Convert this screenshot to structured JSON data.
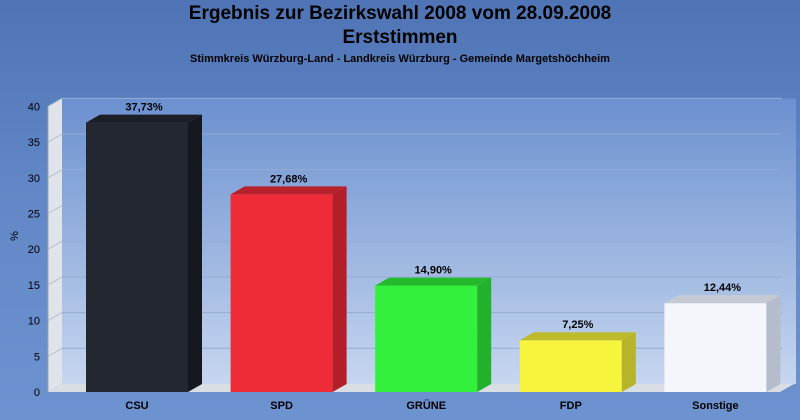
{
  "chart_data": {
    "type": "bar",
    "title": "Ergebnis zur Bezirkswahl 2008 vom 28.09.2008",
    "title2": "Erststimmen",
    "subtitle": "Stimmkreis Würzburg-Land - Landkreis Würzburg - Gemeinde Margetshöchheim",
    "ylabel": "%",
    "ylim": [
      0,
      40
    ],
    "yticks": [
      0,
      5,
      10,
      15,
      20,
      25,
      30,
      35,
      40
    ],
    "grid": true,
    "categories": [
      "CSU",
      "SPD",
      "GRÜNE",
      "FDP",
      "Sonstige"
    ],
    "values": [
      37.73,
      27.68,
      14.9,
      7.25,
      12.44
    ],
    "value_labels": [
      "37,73%",
      "27,68%",
      "14,90%",
      "7,25%",
      "12,44%"
    ],
    "colors": [
      "#23272f",
      "#ee2c38",
      "#33f03c",
      "#f6f43c",
      "#f4f6fc"
    ],
    "side_colors": [
      "#15181e",
      "#b21f29",
      "#22b12a",
      "#b6b42a",
      "#b5bccb"
    ],
    "top_colors": [
      "#1b1e25",
      "#b8222c",
      "#25b92c",
      "#bdbb2c",
      "#c4c9d4"
    ]
  }
}
